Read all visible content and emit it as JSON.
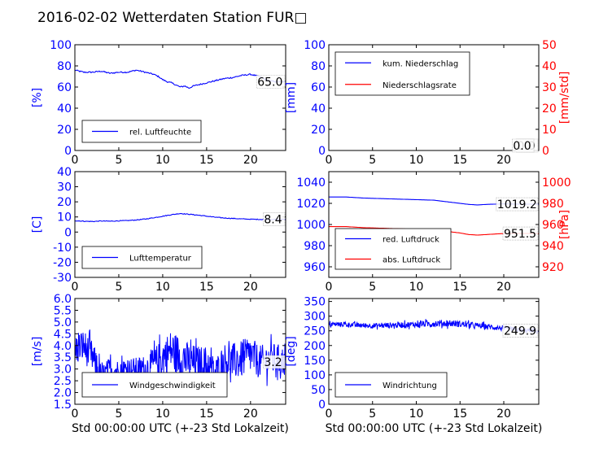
{
  "title": "2016-02-02 Wetterdaten Station FUR□",
  "colors": {
    "primary": "#0000ff",
    "secondary": "#ff0000",
    "axis": "#000000"
  },
  "chart_data": [
    {
      "id": "humidity",
      "type": "line",
      "xlim": [
        0,
        24
      ],
      "xticks": [
        0,
        5,
        10,
        15,
        20
      ],
      "xlabel": "",
      "ylim": [
        0,
        100
      ],
      "yticks": [
        0,
        20,
        40,
        60,
        80,
        100
      ],
      "ylabel": "[%]",
      "legend": "bottom-left",
      "current_value": "65.0",
      "series": [
        {
          "name": "rel. Luftfeuchte",
          "color": "#0000ff",
          "x": [
            0,
            1,
            2,
            3,
            4,
            5,
            6,
            7,
            8,
            9,
            9.5,
            10,
            10.5,
            11,
            11.5,
            12,
            12.5,
            13,
            13.5,
            14,
            15,
            16,
            17,
            18,
            19,
            20,
            21,
            22,
            23,
            24
          ],
          "y": [
            76,
            74,
            74,
            75,
            73,
            74,
            74,
            76,
            74,
            72,
            70,
            67,
            65,
            64,
            62,
            60,
            61,
            59,
            61,
            62,
            64,
            66,
            68,
            69,
            71,
            72,
            70,
            66,
            65,
            65
          ]
        }
      ]
    },
    {
      "id": "precip",
      "type": "line",
      "xlim": [
        0,
        24
      ],
      "xticks": [
        0,
        5,
        10,
        15,
        20
      ],
      "xlabel": "",
      "ylim": [
        0,
        100
      ],
      "yticks": [
        0,
        20,
        40,
        60,
        80,
        100
      ],
      "ylabel": "[mm]",
      "y2lim": [
        0,
        50
      ],
      "y2ticks": [
        0,
        10,
        20,
        30,
        40,
        50
      ],
      "y2label": "[mm/std]",
      "legend": "top-left",
      "current_value": "0.0",
      "current_value2": "0.0",
      "series": [
        {
          "name": "kum. Niederschlag",
          "color": "#0000ff",
          "axis": "left",
          "x": [
            0,
            24
          ],
          "y": [
            0,
            0
          ]
        },
        {
          "name": "Niederschlagsrate",
          "color": "#ff0000",
          "axis": "right",
          "x": [
            0,
            24
          ],
          "y": [
            0,
            0
          ]
        }
      ]
    },
    {
      "id": "temperature",
      "type": "line",
      "xlim": [
        0,
        24
      ],
      "xticks": [
        0,
        5,
        10,
        15,
        20
      ],
      "xlabel": "",
      "ylim": [
        -30,
        40
      ],
      "yticks": [
        -30,
        -20,
        -10,
        0,
        10,
        20,
        30,
        40
      ],
      "ylabel": "[C]",
      "legend": "bottom-left",
      "current_value": "8.4",
      "series": [
        {
          "name": "Lufttemperatur",
          "color": "#0000ff",
          "x": [
            0,
            1,
            2,
            3,
            4,
            5,
            6,
            7,
            8,
            9,
            10,
            11,
            12,
            12.5,
            13,
            14,
            15,
            16,
            17,
            18,
            19,
            20,
            21,
            22,
            23,
            24
          ],
          "y": [
            7.5,
            7.2,
            7.0,
            7.3,
            7.2,
            7.4,
            7.6,
            8.0,
            8.6,
            9.5,
            10.5,
            11.5,
            12.3,
            12.0,
            11.8,
            11.2,
            10.5,
            9.8,
            9.3,
            9.0,
            8.7,
            8.5,
            8.4,
            8.3,
            8.4,
            8.4
          ]
        }
      ]
    },
    {
      "id": "pressure",
      "type": "line",
      "xlim": [
        0,
        24
      ],
      "xticks": [
        0,
        5,
        10,
        15,
        20
      ],
      "xlabel": "",
      "ylim": [
        950,
        1050
      ],
      "yticks": [
        960,
        980,
        1000,
        1020,
        1040
      ],
      "ylabel": "",
      "y2lim": [
        910,
        1010
      ],
      "y2ticks": [
        920,
        940,
        960,
        980,
        1000
      ],
      "y2label": "[hPa]",
      "legend": "bottom-left",
      "current_value": "1019.2",
      "current_value2": "951.5",
      "series": [
        {
          "name": "red. Luftdruck",
          "color": "#0000ff",
          "axis": "left",
          "x": [
            0,
            2,
            4,
            6,
            8,
            10,
            12,
            14,
            15,
            16,
            17,
            18,
            20,
            22,
            24
          ],
          "y": [
            1026,
            1026,
            1025,
            1024.5,
            1024,
            1023.5,
            1023,
            1021,
            1020,
            1019,
            1018.5,
            1019,
            1019.5,
            1019.2,
            1019.2
          ]
        },
        {
          "name": "abs. Luftdruck",
          "color": "#ff0000",
          "axis": "right",
          "x": [
            0,
            2,
            4,
            6,
            8,
            10,
            12,
            14,
            15,
            16,
            17,
            18,
            20,
            22,
            24
          ],
          "y": [
            958,
            958,
            957,
            956.5,
            956,
            955.5,
            955,
            953,
            952,
            950.5,
            950,
            950.5,
            951.5,
            951.5,
            951.5
          ]
        }
      ]
    },
    {
      "id": "wind_speed",
      "type": "line",
      "xlim": [
        0,
        24
      ],
      "xticks": [
        0,
        5,
        10,
        15,
        20
      ],
      "xlabel": "Std 00:00:00 UTC (+-23 Std Lokalzeit)",
      "ylim": [
        1.5,
        6.0
      ],
      "yticks": [
        1.5,
        2.0,
        2.5,
        3.0,
        3.5,
        4.0,
        4.5,
        5.0,
        5.5,
        6.0
      ],
      "ylabel": "[m/s]",
      "legend": "bottom-left",
      "current_value": "3.2",
      "series": [
        {
          "name": "Windgeschwindigkeit",
          "color": "#0000ff",
          "noisy": true,
          "x": [
            0,
            1,
            2,
            3,
            4,
            5,
            6,
            7,
            8,
            9,
            10,
            11,
            12,
            13,
            14,
            15,
            16,
            17,
            18,
            19,
            20,
            21,
            22,
            23,
            24
          ],
          "y": [
            3.8,
            4.0,
            3.5,
            2.6,
            3.0,
            2.9,
            3.0,
            3.0,
            3.0,
            3.2,
            3.5,
            3.8,
            3.5,
            3.3,
            3.2,
            3.2,
            2.8,
            3.4,
            3.3,
            3.4,
            3.6,
            3.3,
            3.4,
            3.4,
            3.3
          ],
          "amplitude": [
            0.7,
            0.7,
            0.7,
            0.6,
            0.5,
            0.5,
            0.5,
            0.5,
            0.6,
            0.7,
            0.8,
            0.9,
            0.9,
            0.8,
            0.8,
            0.8,
            0.7,
            0.7,
            0.8,
            0.8,
            0.8,
            0.7,
            0.7,
            0.7,
            0.6
          ]
        }
      ]
    },
    {
      "id": "wind_dir",
      "type": "line",
      "xlim": [
        0,
        24
      ],
      "xticks": [
        0,
        5,
        10,
        15,
        20
      ],
      "xlabel": "Std 00:00:00 UTC (+-23 Std Lokalzeit)",
      "ylim": [
        0,
        360
      ],
      "yticks": [
        0,
        50,
        100,
        150,
        200,
        250,
        300,
        350
      ],
      "ylabel": "[deg]",
      "legend": "bottom-left",
      "current_value": "249.9",
      "series": [
        {
          "name": "Windrichtung",
          "color": "#0000ff",
          "noisy": true,
          "x": [
            0,
            2,
            4,
            6,
            8,
            10,
            12,
            14,
            16,
            18,
            20,
            22,
            24
          ],
          "y": [
            272,
            272,
            268,
            268,
            270,
            272,
            275,
            276,
            270,
            265,
            258,
            252,
            250
          ],
          "amplitude": [
            8,
            8,
            9,
            9,
            10,
            10,
            12,
            12,
            10,
            9,
            9,
            8,
            8
          ]
        }
      ]
    }
  ]
}
